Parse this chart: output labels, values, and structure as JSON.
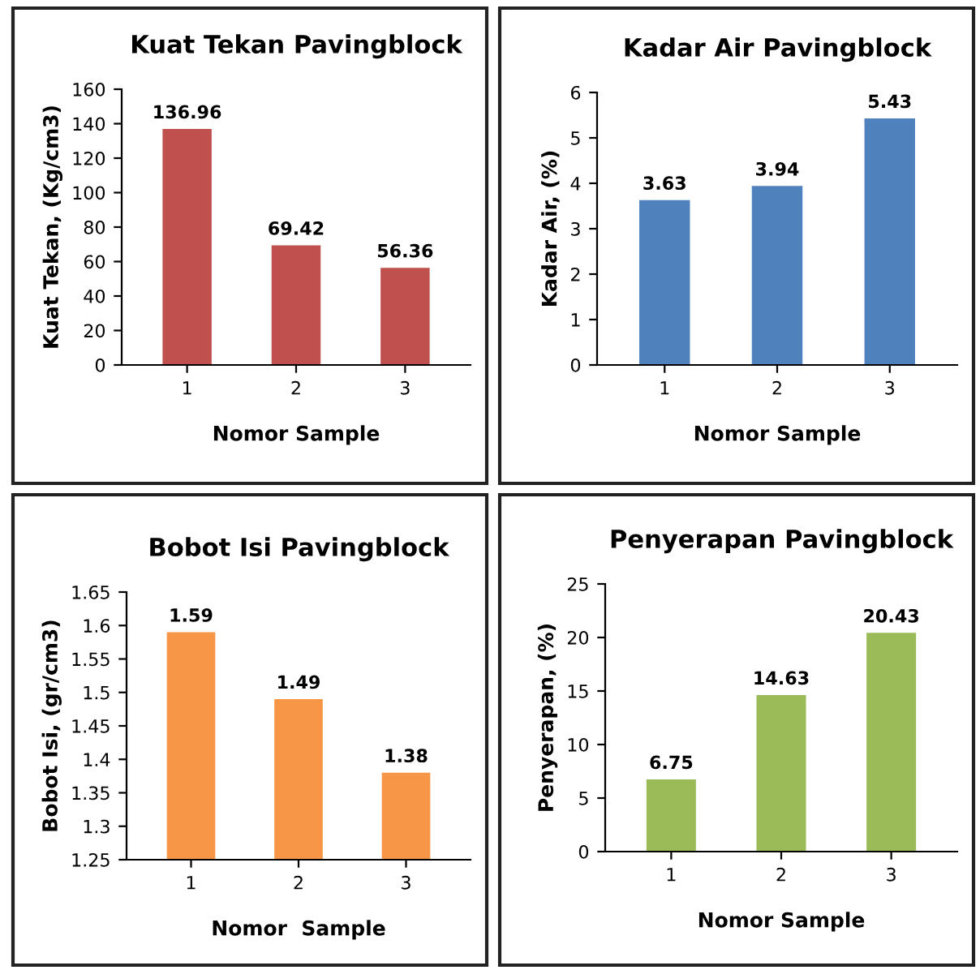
{
  "chart_data": [
    {
      "type": "bar",
      "title": "Kuat Tekan Pavingblock",
      "xlabel": "Nomor Sample",
      "ylabel": "Kuat Tekan, (Kg/cm3)",
      "categories": [
        "1",
        "2",
        "3"
      ],
      "values": [
        136.96,
        69.42,
        56.36
      ],
      "color": "#c0504d",
      "ylim": [
        0,
        160
      ],
      "yticks": [
        0,
        20,
        40,
        60,
        80,
        100,
        120,
        140,
        160
      ],
      "data_labels": true
    },
    {
      "type": "bar",
      "title": "Kadar Air Pavingblock",
      "xlabel": "Nomor Sample",
      "ylabel": "Kadar Air, (%)",
      "categories": [
        "1",
        "2",
        "3"
      ],
      "values": [
        3.63,
        3.94,
        5.43
      ],
      "color": "#4f81bd",
      "ylim": [
        0,
        6
      ],
      "yticks": [
        0,
        1,
        2,
        3,
        4,
        5,
        6
      ],
      "data_labels": true
    },
    {
      "type": "bar",
      "title": "Bobot Isi Pavingblock",
      "xlabel": "Nomor  Sample",
      "ylabel": "Bobot Isi, (gr/cm3)",
      "categories": [
        "1",
        "2",
        "3"
      ],
      "values": [
        1.59,
        1.49,
        1.38
      ],
      "color": "#f79646",
      "ylim": [
        1.25,
        1.65
      ],
      "yticks": [
        1.25,
        1.3,
        1.35,
        1.4,
        1.45,
        1.5,
        1.55,
        1.6,
        1.65
      ],
      "data_labels": true
    },
    {
      "type": "bar",
      "title": "Penyerapan Pavingblock",
      "xlabel": "Nomor Sample",
      "ylabel": "Penyerapan, (%)",
      "categories": [
        "1",
        "2",
        "3"
      ],
      "values": [
        6.75,
        14.63,
        20.43
      ],
      "color": "#9bbb59",
      "ylim": [
        0,
        25
      ],
      "yticks": [
        0,
        5,
        10,
        15,
        20,
        25
      ],
      "data_labels": true
    }
  ]
}
